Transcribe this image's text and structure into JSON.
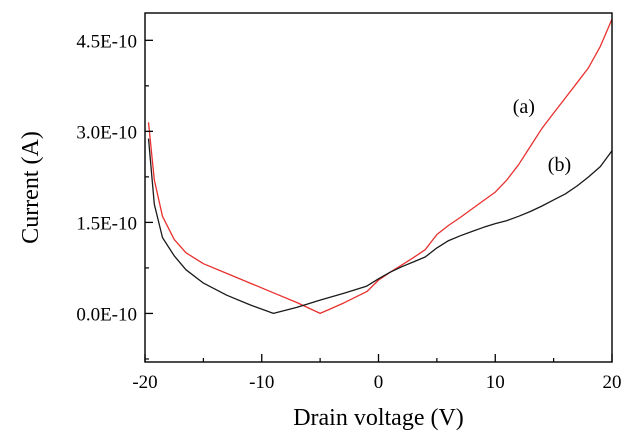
{
  "chart_data": {
    "type": "line",
    "xlabel": "Drain voltage (V)",
    "ylabel": "Current (A)",
    "xlim": [
      -20,
      20
    ],
    "ylim": [
      -8e-11,
      4.95e-10
    ],
    "x_ticks": [
      -20,
      -10,
      0,
      10,
      20
    ],
    "x_tick_labels": [
      "-20",
      "-10",
      "0",
      "10",
      "20"
    ],
    "y_ticks": [
      0.0,
      1.5e-10,
      3e-10,
      4.5e-10
    ],
    "y_tick_labels": [
      "0.0E-10",
      "1.5E-10",
      "3.0E-10",
      "4.5E-10"
    ],
    "grid": false,
    "series": [
      {
        "name": "(a)",
        "color": "#e8312f",
        "x": [
          -19.7,
          -19.2,
          -18.5,
          -17.5,
          -16.5,
          -15,
          -13,
          -11,
          -9,
          -7,
          -5,
          -3,
          -1,
          0,
          1,
          2,
          3,
          4,
          5,
          6,
          7,
          8,
          9,
          10,
          11,
          12,
          13,
          14,
          15,
          16,
          17,
          18,
          19,
          20
        ],
        "y": [
          3.15e-10,
          2.2e-10,
          1.6e-10,
          1.22e-10,
          1e-10,
          8.2e-11,
          6.6e-11,
          5e-11,
          3.4e-11,
          1.8e-11,
          0.0,
          1.7e-11,
          3.6e-11,
          5.5e-11,
          6.8e-11,
          8e-11,
          9.2e-11,
          1.05e-10,
          1.3e-10,
          1.45e-10,
          1.58e-10,
          1.72e-10,
          1.86e-10,
          2e-10,
          2.2e-10,
          2.45e-10,
          2.75e-10,
          3.05e-10,
          3.3e-10,
          3.55e-10,
          3.8e-10,
          4.05e-10,
          4.4e-10,
          4.85e-10
        ]
      },
      {
        "name": "(b)",
        "color": "#1a1a1a",
        "x": [
          -19.7,
          -19.2,
          -18.5,
          -17.5,
          -16.5,
          -15,
          -13,
          -11,
          -9,
          -7,
          -5,
          -3,
          -1,
          0,
          1,
          2,
          3,
          4,
          5,
          6,
          7,
          8,
          9,
          10,
          11,
          12,
          13,
          14,
          15,
          16,
          17,
          18,
          19,
          20
        ],
        "y": [
          2.88e-10,
          1.8e-10,
          1.25e-10,
          9.5e-11,
          7.2e-11,
          5e-11,
          3e-11,
          1.4e-11,
          0.0,
          1e-11,
          2.2e-11,
          3.3e-11,
          4.5e-11,
          5.7e-11,
          6.8e-11,
          7.7e-11,
          8.5e-11,
          9.3e-11,
          1.08e-10,
          1.2e-10,
          1.28e-10,
          1.35e-10,
          1.42e-10,
          1.48e-10,
          1.53e-10,
          1.6e-10,
          1.68e-10,
          1.77e-10,
          1.87e-10,
          1.97e-10,
          2.1e-10,
          2.25e-10,
          2.42e-10,
          2.68e-10
        ]
      }
    ]
  }
}
